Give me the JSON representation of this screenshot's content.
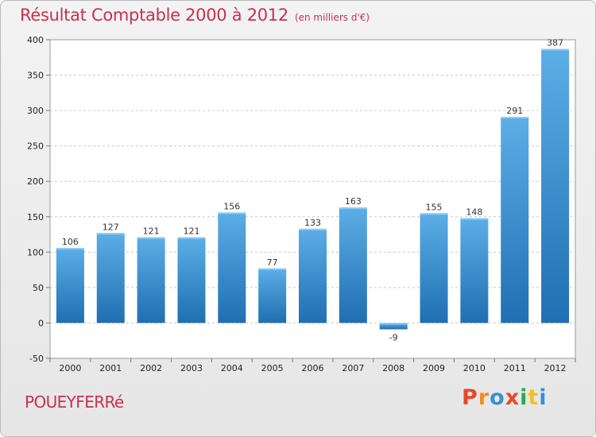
{
  "header": {
    "title": "Résultat Comptable 2000 à 2012",
    "subtitle": "(en milliers d'€)"
  },
  "footer": {
    "commune": "POUEYFERRé",
    "logo": "Proxiti"
  },
  "colors": {
    "title": "#c8314d",
    "bar_light": "#5caee6",
    "bar_dark": "#1f6fb2",
    "logo_letters": [
      "#e8492b",
      "#f28c1c",
      "#3b8ed6",
      "#e8492b",
      "#2fa84f",
      "#f2c21c",
      "#3b8ed6"
    ]
  },
  "chart_data": {
    "type": "bar",
    "categories": [
      "2000",
      "2001",
      "2002",
      "2003",
      "2004",
      "2005",
      "2006",
      "2007",
      "2008",
      "2009",
      "2010",
      "2011",
      "2012"
    ],
    "values": [
      106,
      127,
      121,
      121,
      156,
      77,
      133,
      163,
      -9,
      155,
      148,
      291,
      387
    ],
    "title": "Résultat Comptable 2000 à 2012",
    "xlabel": "",
    "ylabel": "",
    "ylim": [
      -50,
      400
    ],
    "yticks": [
      -50,
      0,
      50,
      100,
      150,
      200,
      250,
      300,
      350,
      400
    ],
    "grid": true,
    "legend": "none"
  }
}
